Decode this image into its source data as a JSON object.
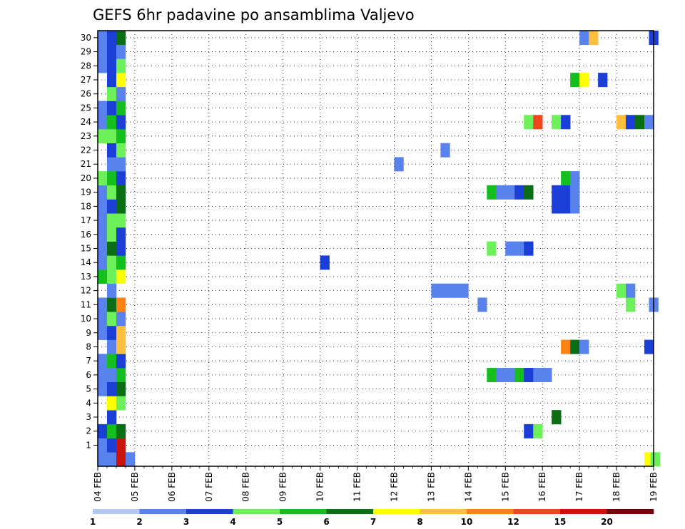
{
  "chart_data": {
    "type": "heatmap",
    "title": "GEFS 6hr padavine po ansamblima Valjevo",
    "xlabel": "",
    "ylabel": "",
    "x_ticks": [
      "04 FEB",
      "05 FEB",
      "06 FEB",
      "07 FEB",
      "08 FEB",
      "09 FEB",
      "10 FEB",
      "11 FEB",
      "12 FEB",
      "13 FEB",
      "14 FEB",
      "15 FEB",
      "16 FEB",
      "17 FEB",
      "18 FEB",
      "19 FEB"
    ],
    "x_range_hours": [
      0,
      360
    ],
    "y_ticks": [
      "1",
      "2",
      "3",
      "4",
      "5",
      "6",
      "7",
      "8",
      "9",
      "10",
      "11",
      "12",
      "13",
      "14",
      "15",
      "16",
      "17",
      "18",
      "19",
      "20",
      "21",
      "22",
      "23",
      "24",
      "25",
      "26",
      "27",
      "28",
      "29",
      "30"
    ],
    "y_range": [
      0,
      30
    ],
    "grid": "dotted",
    "colorbar": {
      "levels": [
        "1",
        "2",
        "3",
        "4",
        "5",
        "6",
        "7",
        "8",
        "10",
        "12",
        "15",
        "20"
      ],
      "colors": [
        "#b4c8f4",
        "#5a82ec",
        "#1a3ed6",
        "#6ef05a",
        "#14be1e",
        "#0a6e14",
        "#ffff00",
        "#ffbe3c",
        "#ff8214",
        "#f0461e",
        "#c8140a",
        "#78000a"
      ]
    },
    "cells": [
      {
        "member": 0,
        "hour": 0,
        "level": 1
      },
      {
        "member": 0,
        "hour": 6,
        "level": 1
      },
      {
        "member": 0,
        "hour": 12,
        "level": 10
      },
      {
        "member": 0,
        "hour": 18,
        "level": 1
      },
      {
        "member": 1,
        "hour": 0,
        "level": 1
      },
      {
        "member": 1,
        "hour": 6,
        "level": 2
      },
      {
        "member": 1,
        "hour": 12,
        "level": 10
      },
      {
        "member": 2,
        "hour": 0,
        "level": 2
      },
      {
        "member": 2,
        "hour": 6,
        "level": 4
      },
      {
        "member": 2,
        "hour": 12,
        "level": 5
      },
      {
        "member": 3,
        "hour": 6,
        "level": 2
      },
      {
        "member": 4,
        "hour": 6,
        "level": 6
      },
      {
        "member": 4,
        "hour": 12,
        "level": 3
      },
      {
        "member": 5,
        "hour": 0,
        "level": 1
      },
      {
        "member": 5,
        "hour": 6,
        "level": 2
      },
      {
        "member": 5,
        "hour": 12,
        "level": 5
      },
      {
        "member": 6,
        "hour": 0,
        "level": 1
      },
      {
        "member": 6,
        "hour": 6,
        "level": 1
      },
      {
        "member": 6,
        "hour": 12,
        "level": 4
      },
      {
        "member": 7,
        "hour": 0,
        "level": 1
      },
      {
        "member": 7,
        "hour": 6,
        "level": 4
      },
      {
        "member": 7,
        "hour": 12,
        "level": 2
      },
      {
        "member": 8,
        "hour": 6,
        "level": 1
      },
      {
        "member": 8,
        "hour": 12,
        "level": 7
      },
      {
        "member": 9,
        "hour": 0,
        "level": 1
      },
      {
        "member": 9,
        "hour": 6,
        "level": 2
      },
      {
        "member": 9,
        "hour": 12,
        "level": 7
      },
      {
        "member": 10,
        "hour": 0,
        "level": 1
      },
      {
        "member": 10,
        "hour": 6,
        "level": 3
      },
      {
        "member": 10,
        "hour": 12,
        "level": 1
      },
      {
        "member": 11,
        "hour": 0,
        "level": 1
      },
      {
        "member": 11,
        "hour": 6,
        "level": 5
      },
      {
        "member": 11,
        "hour": 12,
        "level": 8
      },
      {
        "member": 12,
        "hour": 6,
        "level": 1
      },
      {
        "member": 13,
        "hour": 0,
        "level": 4
      },
      {
        "member": 13,
        "hour": 6,
        "level": 3
      },
      {
        "member": 13,
        "hour": 12,
        "level": 6
      },
      {
        "member": 14,
        "hour": 0,
        "level": 1
      },
      {
        "member": 14,
        "hour": 6,
        "level": 3
      },
      {
        "member": 14,
        "hour": 12,
        "level": 4
      },
      {
        "member": 15,
        "hour": 0,
        "level": 1
      },
      {
        "member": 15,
        "hour": 6,
        "level": 5
      },
      {
        "member": 15,
        "hour": 12,
        "level": 2
      },
      {
        "member": 16,
        "hour": 0,
        "level": 1
      },
      {
        "member": 16,
        "hour": 6,
        "level": 3
      },
      {
        "member": 16,
        "hour": 12,
        "level": 2
      },
      {
        "member": 17,
        "hour": 0,
        "level": 1
      },
      {
        "member": 17,
        "hour": 6,
        "level": 3
      },
      {
        "member": 17,
        "hour": 12,
        "level": 3
      },
      {
        "member": 18,
        "hour": 0,
        "level": 1
      },
      {
        "member": 18,
        "hour": 6,
        "level": 2
      },
      {
        "member": 18,
        "hour": 12,
        "level": 5
      },
      {
        "member": 19,
        "hour": 0,
        "level": 1
      },
      {
        "member": 19,
        "hour": 6,
        "level": 3
      },
      {
        "member": 19,
        "hour": 12,
        "level": 5
      },
      {
        "member": 20,
        "hour": 0,
        "level": 3
      },
      {
        "member": 20,
        "hour": 6,
        "level": 4
      },
      {
        "member": 20,
        "hour": 12,
        "level": 2
      },
      {
        "member": 21,
        "hour": 6,
        "level": 1
      },
      {
        "member": 21,
        "hour": 12,
        "level": 1
      },
      {
        "member": 22,
        "hour": 6,
        "level": 2
      },
      {
        "member": 22,
        "hour": 12,
        "level": 3
      },
      {
        "member": 23,
        "hour": 0,
        "level": 3
      },
      {
        "member": 23,
        "hour": 6,
        "level": 3
      },
      {
        "member": 23,
        "hour": 12,
        "level": 4
      },
      {
        "member": 24,
        "hour": 0,
        "level": 1
      },
      {
        "member": 24,
        "hour": 6,
        "level": 4
      },
      {
        "member": 24,
        "hour": 12,
        "level": 2
      },
      {
        "member": 25,
        "hour": 0,
        "level": 1
      },
      {
        "member": 25,
        "hour": 6,
        "level": 2
      },
      {
        "member": 25,
        "hour": 12,
        "level": 4
      },
      {
        "member": 26,
        "hour": 6,
        "level": 3
      },
      {
        "member": 26,
        "hour": 12,
        "level": 1
      },
      {
        "member": 27,
        "hour": 6,
        "level": 2
      },
      {
        "member": 27,
        "hour": 12,
        "level": 6
      },
      {
        "member": 28,
        "hour": 0,
        "level": 1
      },
      {
        "member": 28,
        "hour": 6,
        "level": 2
      },
      {
        "member": 28,
        "hour": 12,
        "level": 3
      },
      {
        "member": 29,
        "hour": 0,
        "level": 1
      },
      {
        "member": 29,
        "hour": 6,
        "level": 2
      },
      {
        "member": 29,
        "hour": 12,
        "level": 1
      },
      {
        "member": 30,
        "hour": 0,
        "level": 1
      },
      {
        "member": 30,
        "hour": 6,
        "level": 2
      },
      {
        "member": 30,
        "hour": 12,
        "level": 5
      },
      {
        "member": 14,
        "hour": 144,
        "level": 2
      },
      {
        "member": 12,
        "hour": 216,
        "level": 1
      },
      {
        "member": 12,
        "hour": 222,
        "level": 1
      },
      {
        "member": 12,
        "hour": 228,
        "level": 1
      },
      {
        "member": 12,
        "hour": 234,
        "level": 1
      },
      {
        "member": 11,
        "hour": 246,
        "level": 1
      },
      {
        "member": 21,
        "hour": 192,
        "level": 1
      },
      {
        "member": 22,
        "hour": 222,
        "level": 1
      },
      {
        "member": 6,
        "hour": 252,
        "level": 4
      },
      {
        "member": 6,
        "hour": 258,
        "level": 1
      },
      {
        "member": 6,
        "hour": 264,
        "level": 1
      },
      {
        "member": 6,
        "hour": 270,
        "level": 4
      },
      {
        "member": 6,
        "hour": 276,
        "level": 2
      },
      {
        "member": 6,
        "hour": 282,
        "level": 1
      },
      {
        "member": 6,
        "hour": 288,
        "level": 1
      },
      {
        "member": 15,
        "hour": 252,
        "level": 3
      },
      {
        "member": 15,
        "hour": 264,
        "level": 1
      },
      {
        "member": 15,
        "hour": 270,
        "level": 1
      },
      {
        "member": 15,
        "hour": 276,
        "level": 2
      },
      {
        "member": 19,
        "hour": 252,
        "level": 4
      },
      {
        "member": 19,
        "hour": 258,
        "level": 1
      },
      {
        "member": 19,
        "hour": 264,
        "level": 1
      },
      {
        "member": 19,
        "hour": 270,
        "level": 2
      },
      {
        "member": 19,
        "hour": 276,
        "level": 5
      },
      {
        "member": 19,
        "hour": 294,
        "level": 2
      },
      {
        "member": 19,
        "hour": 300,
        "level": 2
      },
      {
        "member": 19,
        "hour": 306,
        "level": 1
      },
      {
        "member": 18,
        "hour": 294,
        "level": 2
      },
      {
        "member": 18,
        "hour": 300,
        "level": 2
      },
      {
        "member": 18,
        "hour": 306,
        "level": 1
      },
      {
        "member": 2,
        "hour": 276,
        "level": 2
      },
      {
        "member": 2,
        "hour": 282,
        "level": 3
      },
      {
        "member": 3,
        "hour": 294,
        "level": 5
      },
      {
        "member": 24,
        "hour": 276,
        "level": 3
      },
      {
        "member": 24,
        "hour": 282,
        "level": 9
      },
      {
        "member": 24,
        "hour": 294,
        "level": 3
      },
      {
        "member": 24,
        "hour": 300,
        "level": 2
      },
      {
        "member": 24,
        "hour": 336,
        "level": 7
      },
      {
        "member": 24,
        "hour": 342,
        "level": 2
      },
      {
        "member": 24,
        "hour": 348,
        "level": 5
      },
      {
        "member": 24,
        "hour": 354,
        "level": 1
      },
      {
        "member": 20,
        "hour": 300,
        "level": 4
      },
      {
        "member": 20,
        "hour": 306,
        "level": 1
      },
      {
        "member": 8,
        "hour": 300,
        "level": 8
      },
      {
        "member": 8,
        "hour": 306,
        "level": 5
      },
      {
        "member": 8,
        "hour": 312,
        "level": 1
      },
      {
        "member": 8,
        "hour": 354,
        "level": 2
      },
      {
        "member": 27,
        "hour": 306,
        "level": 4
      },
      {
        "member": 27,
        "hour": 312,
        "level": 6
      },
      {
        "member": 27,
        "hour": 324,
        "level": 2
      },
      {
        "member": 30,
        "hour": 312,
        "level": 1
      },
      {
        "member": 30,
        "hour": 318,
        "level": 7
      },
      {
        "member": 30,
        "hour": 357,
        "level": 2
      },
      {
        "member": 12,
        "hour": 336,
        "level": 3
      },
      {
        "member": 12,
        "hour": 342,
        "level": 1
      },
      {
        "member": 11,
        "hour": 342,
        "level": 3
      },
      {
        "member": 11,
        "hour": 357,
        "level": 1
      },
      {
        "member": 0,
        "hour": 354,
        "level": 6
      },
      {
        "member": 0,
        "hour": 358,
        "level": 3
      }
    ]
  }
}
